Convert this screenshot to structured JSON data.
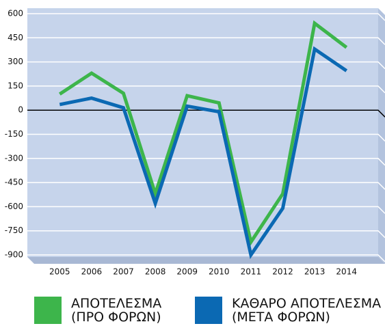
{
  "chart_data": {
    "type": "line",
    "categories": [
      "2005",
      "2006",
      "2007",
      "2008",
      "2009",
      "2010",
      "2011",
      "2012",
      "2013",
      "2014"
    ],
    "series": [
      {
        "name": "ΑΠΟΤΕΛΕΣΜΑ\n(ΠΡΟ ΦΟΡΩΝ)",
        "color": "#3db54b",
        "values": [
          100,
          230,
          105,
          -520,
          90,
          45,
          -820,
          -520,
          540,
          390
        ]
      },
      {
        "name": "ΚΑΘΑΡΟ ΑΠΟΤΕΛΕΣΜΑ\n(ΜΕΤΑ ΦΟΡΩΝ)",
        "color": "#0b69b3",
        "values": [
          35,
          75,
          15,
          -580,
          25,
          -10,
          -900,
          -610,
          380,
          245
        ]
      }
    ],
    "ylim": [
      -900,
      600
    ],
    "yticks": [
      600,
      450,
      300,
      150,
      0,
      -150,
      -300,
      -450,
      -600,
      -750,
      -900
    ],
    "grid": true
  }
}
